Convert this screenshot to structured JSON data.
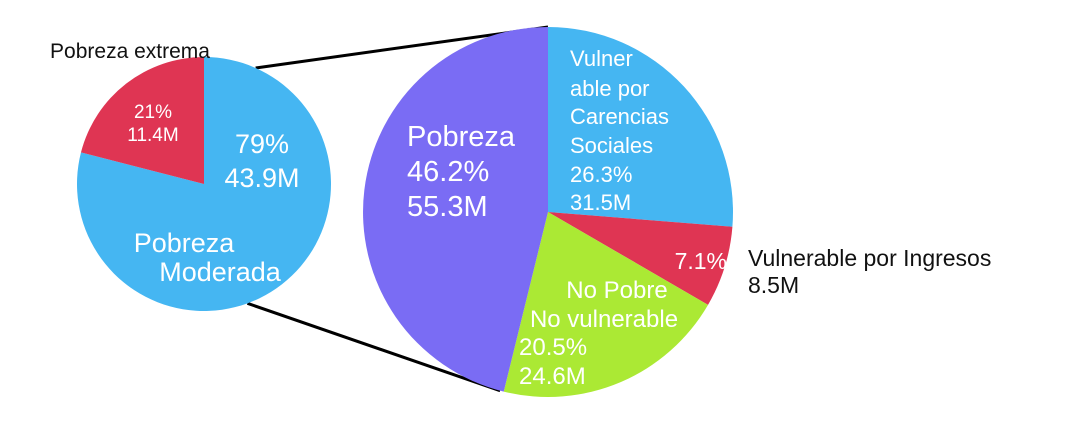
{
  "chart_data": [
    {
      "type": "pie",
      "title": "",
      "slices": [
        {
          "key": "moderada",
          "name_lines": [
            "Pobreza",
            "Moderada"
          ],
          "value": 79,
          "labels": [
            "79%",
            "43.9M"
          ],
          "color": "#45b6f2"
        },
        {
          "key": "extrema",
          "name_lines": [
            "Pobreza extrema"
          ],
          "value": 21,
          "labels": [
            "21%",
            "11.4M"
          ],
          "color": "#df3553"
        }
      ]
    },
    {
      "type": "pie",
      "title": "",
      "slices": [
        {
          "key": "carencias",
          "name_lines": [],
          "value": 26.3,
          "labels": [
            "Vulner",
            "able por",
            "Carencias",
            "Sociales",
            "26.3%",
            "31.5M"
          ],
          "color": "#45b6f2"
        },
        {
          "key": "ingresos",
          "name_lines": [
            "Vulnerable por Ingresos",
            "8.5M"
          ],
          "value": 7.1,
          "labels": [
            "7.1%"
          ],
          "color": "#df3553"
        },
        {
          "key": "nopobre",
          "name_lines": [],
          "value": 20.5,
          "labels": [
            "No Pobre",
            "No vulnerable",
            "20.5%",
            "24.6M"
          ],
          "color": "#abe934"
        },
        {
          "key": "pobreza",
          "name_lines": [],
          "value": 46.2,
          "labels": [
            "Pobreza",
            "46.2%",
            "55.3M"
          ],
          "color": "#7a6cf4"
        }
      ]
    }
  ]
}
